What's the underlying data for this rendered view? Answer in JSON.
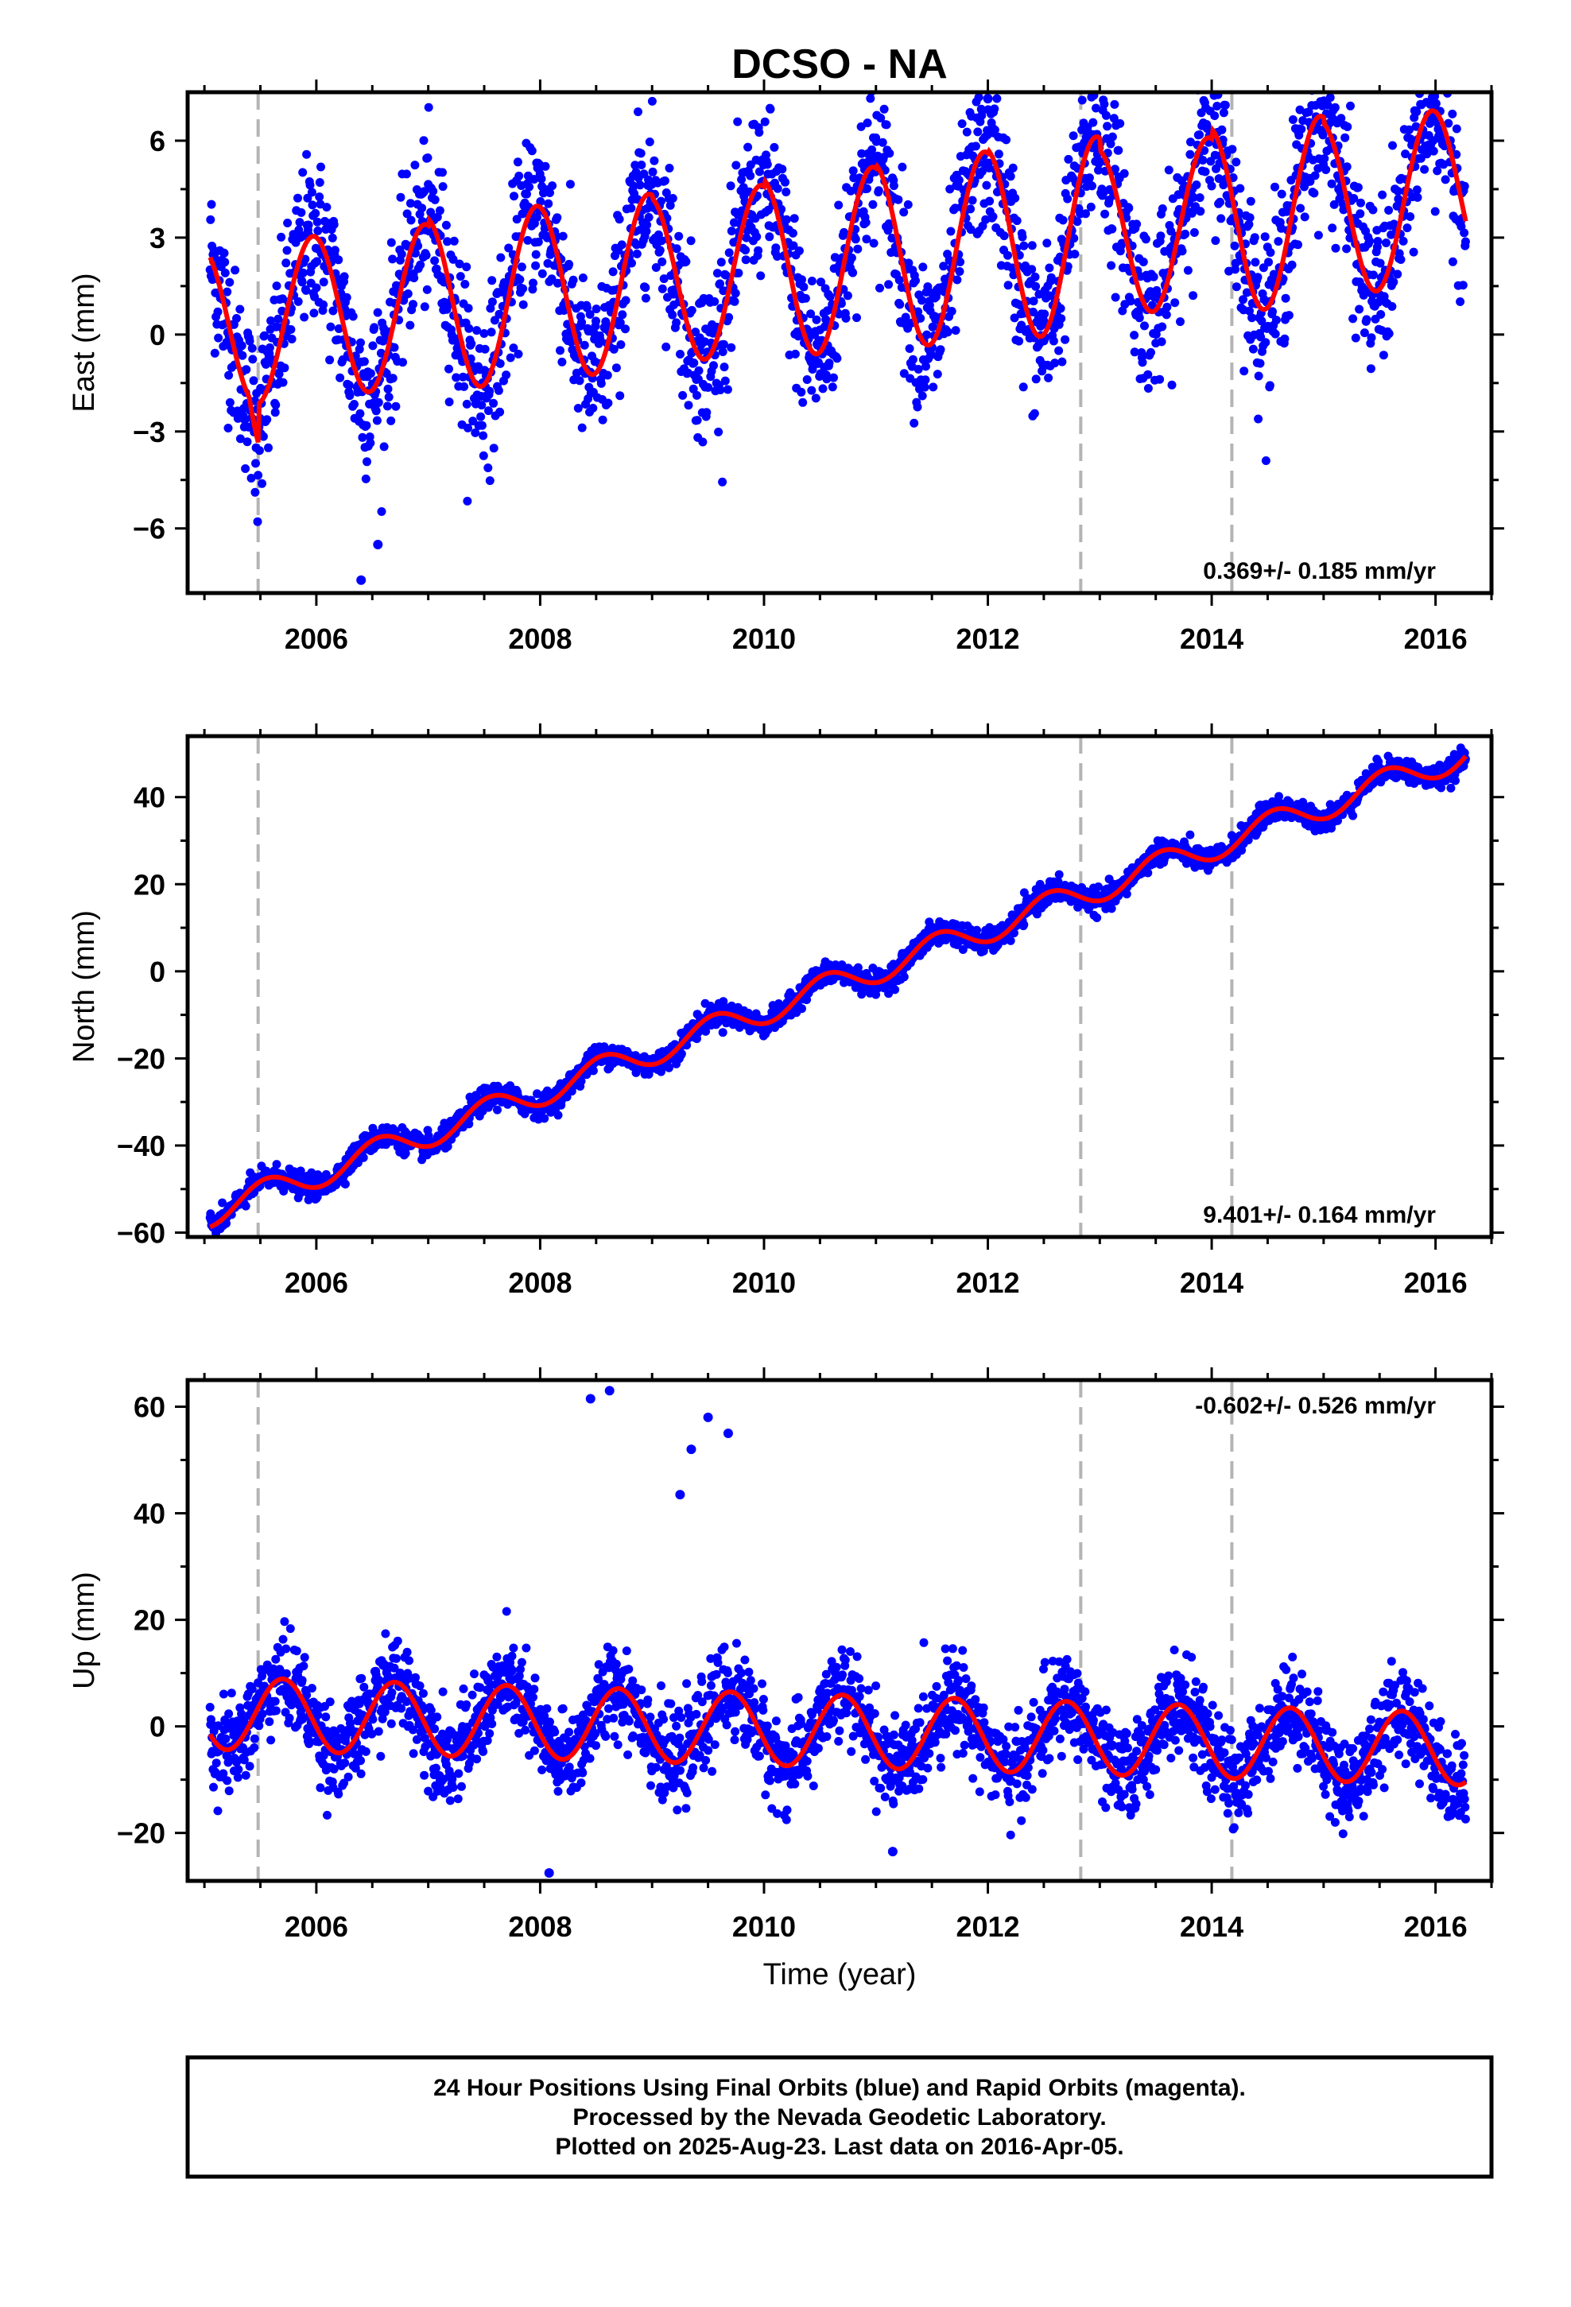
{
  "title": "DCSO - NA",
  "chart_data": [
    {
      "type": "scatter",
      "panel": "east",
      "ylabel": "East (mm)",
      "xlabel": "",
      "xlim": [
        2004.85,
        2016.5
      ],
      "ylim": [
        -8,
        7.5
      ],
      "xticks": [
        "2006",
        "2008",
        "2010",
        "2012",
        "2014",
        "2016"
      ],
      "yticks": [
        "6",
        "3",
        "0",
        "−3",
        "−6"
      ],
      "yticks_values": [
        6,
        3,
        0,
        -3,
        -6
      ],
      "rate_text": "0.369+/- 0.185 mm/yr",
      "rate_position": "bottom-right",
      "equipment_changes": [
        2005.48,
        2012.83,
        2014.18
      ],
      "model": {
        "start": 2005.05,
        "end": 2016.27,
        "offset": 0.2,
        "trend": 0.369,
        "amp_first": 2.5,
        "amp_slope": 0.08,
        "amp_cycles": [
          2.5,
          2.5,
          2.7,
          2.7,
          2.6,
          2.8,
          2.9,
          3.0,
          2.6,
          2.9,
          2.7,
          2.7
        ],
        "period": 1.0,
        "phase_peak": 0.97,
        "step_at": 2005.48,
        "step_size": -1.2
      },
      "scatter_noise": 1.25,
      "outliers": [
        [
          2006.4,
          -7.6
        ],
        [
          2012.0,
          7.3
        ],
        [
          2006.55,
          -6.5
        ]
      ],
      "point_color": "#0000ff",
      "line_color": "#ff0000"
    },
    {
      "type": "scatter",
      "panel": "north",
      "ylabel": "North (mm)",
      "xlabel": "",
      "xlim": [
        2004.85,
        2016.5
      ],
      "ylim": [
        -61,
        54
      ],
      "xticks": [
        "2006",
        "2008",
        "2010",
        "2012",
        "2014",
        "2016"
      ],
      "yticks": [
        "40",
        "20",
        "0",
        "−20",
        "−40",
        "−60"
      ],
      "yticks_values": [
        40,
        20,
        0,
        -20,
        -40,
        -60
      ],
      "rate_text": "9.401+/- 0.164 mm/yr",
      "rate_position": "bottom-right",
      "equipment_changes": [
        2005.48,
        2012.83,
        2014.18
      ],
      "model": {
        "start": 2005.05,
        "end": 2016.27,
        "offset": -55.5,
        "trend": 9.401,
        "amp": 3.2,
        "period": 1.0,
        "phase_peak": 0.55
      },
      "scatter_noise": 1.3,
      "outliers": [],
      "point_color": "#0000ff",
      "line_color": "#ff0000"
    },
    {
      "type": "scatter",
      "panel": "up",
      "ylabel": "Up (mm)",
      "xlabel": "Time (year)",
      "xlim": [
        2004.85,
        2016.5
      ],
      "ylim": [
        -29,
        65
      ],
      "xticks": [
        "2006",
        "2008",
        "2010",
        "2012",
        "2014",
        "2016"
      ],
      "yticks": [
        "60",
        "40",
        "20",
        "0",
        "−20"
      ],
      "yticks_values": [
        60,
        40,
        20,
        0,
        -20
      ],
      "rate_text": "-0.602+/- 0.526 mm/yr",
      "rate_position": "top-right",
      "equipment_changes": [
        2005.48,
        2012.83,
        2014.18
      ],
      "model": {
        "start": 2005.05,
        "end": 2016.27,
        "offset": 2.5,
        "trend": -0.602,
        "amp": 6.8,
        "period": 1.0,
        "phase_peak": 0.7
      },
      "scatter_noise": 4.2,
      "outliers": [
        [
          2008.45,
          61.5
        ],
        [
          2008.62,
          63.0
        ],
        [
          2009.25,
          43.5
        ],
        [
          2009.35,
          52.0
        ],
        [
          2009.5,
          58.0
        ],
        [
          2009.68,
          55.0
        ],
        [
          2008.08,
          -27.5
        ],
        [
          2011.15,
          -23.5
        ]
      ],
      "point_color": "#0000ff",
      "line_color": "#ff0000"
    }
  ],
  "footer": {
    "line1": "24 Hour Positions Using Final Orbits (blue) and Rapid Orbits (magenta).",
    "line2": "Processed by the Nevada Geodetic Laboratory.",
    "line3": "Plotted on 2025-Aug-23. Last data on 2016-Apr-05."
  },
  "colors": {
    "points": "#0000ff",
    "fit": "#ff0000",
    "equipment_line": "#b4b4b4",
    "frame": "#000000"
  }
}
